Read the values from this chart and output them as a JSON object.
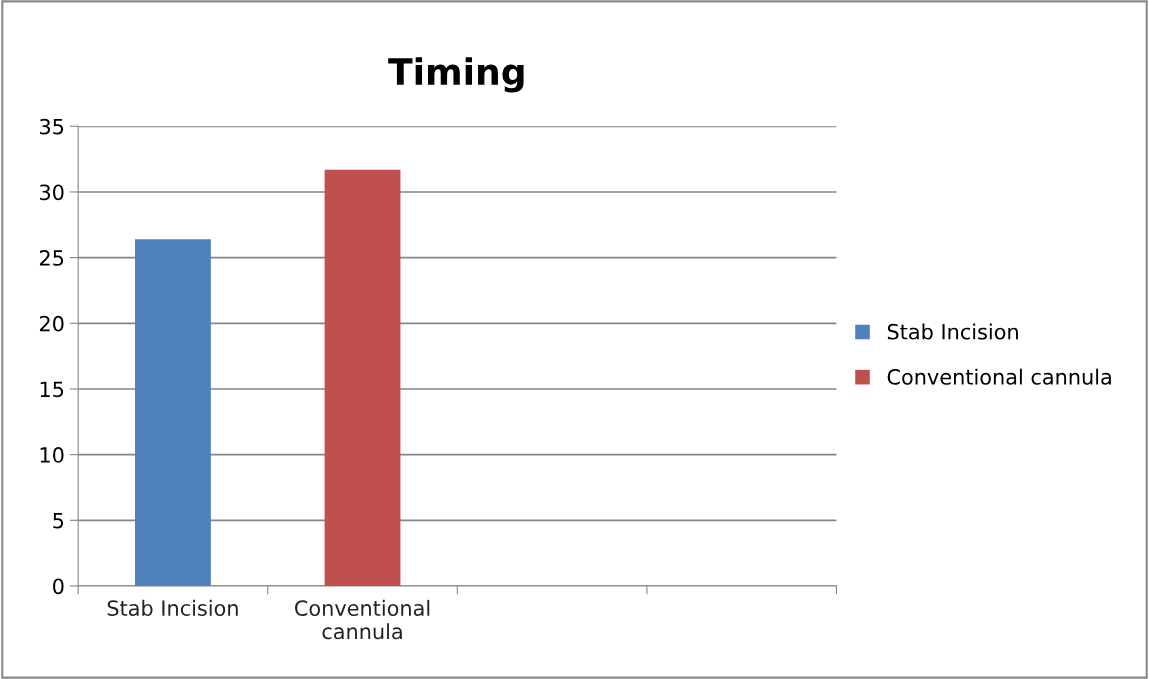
{
  "chart_data": {
    "type": "bar",
    "title": "Timing",
    "categories": [
      "Stab Incision",
      "Conventional\ncannula",
      null,
      null
    ],
    "series": [
      {
        "name": "Stab Incision",
        "color": "#4f81bd",
        "values": [
          26.4,
          null,
          null,
          null
        ]
      },
      {
        "name": "Conventional cannula",
        "color": "#c0504d",
        "values": [
          null,
          31.7,
          null,
          null
        ]
      }
    ],
    "ylim": [
      0,
      35
    ],
    "yticks": [
      0,
      5,
      10,
      15,
      20,
      25,
      30,
      35
    ],
    "grid": "y",
    "legend": "right"
  }
}
